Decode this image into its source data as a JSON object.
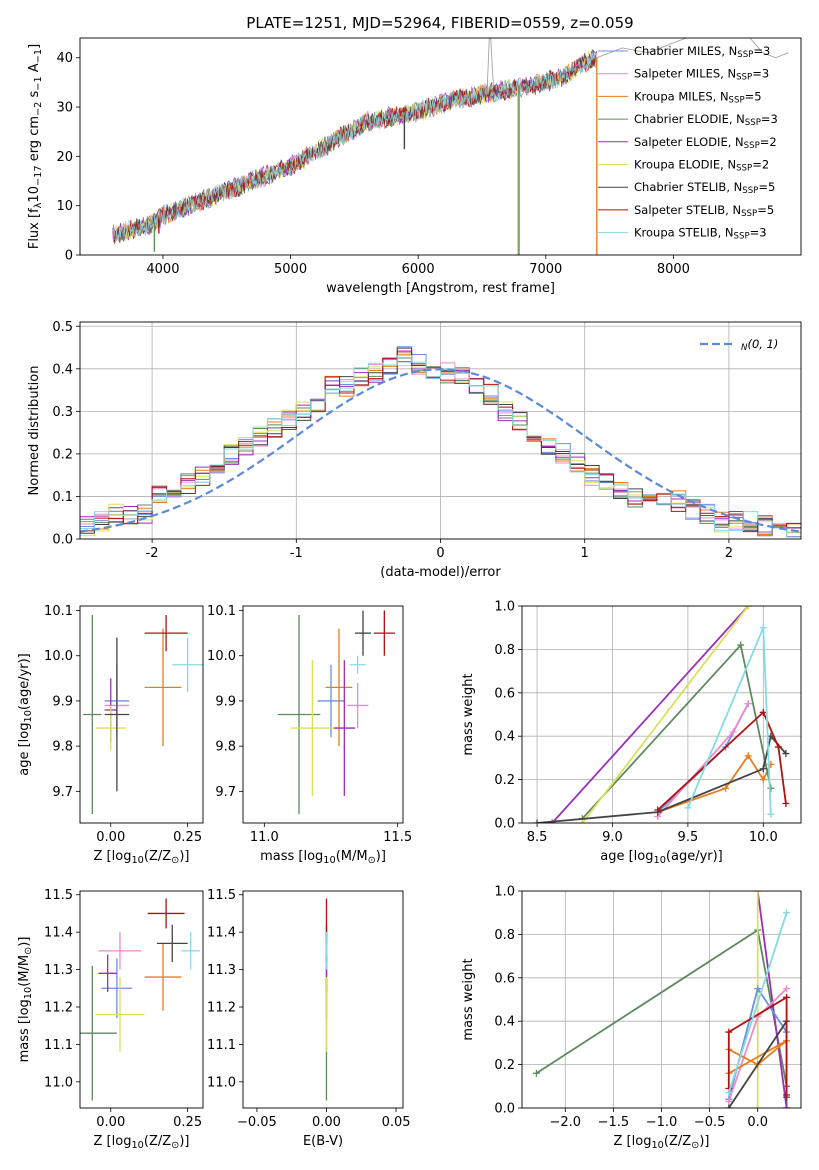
{
  "title": "PLATE=1251, MJD=52964, FIBERID=0559, z=0.059",
  "colors": [
    "#6d8fe0",
    "#e98ccc",
    "#e87d1e",
    "#5d8a5e",
    "#9a2fb8",
    "#d9e05a",
    "#444444",
    "#b01212",
    "#85dbe3"
  ],
  "legend": [
    "Chabrier MILES, N$SSP$=3",
    "Salpeter MILES, N$SSP$=3",
    "Kroupa MILES, N$SSP$=5",
    "Chabrier ELODIE, N$SSP$=3",
    "Salpeter ELODIE, N$SSP$=2",
    "Kroupa ELODIE, N$SSP$=2",
    "Chabrier STELIB, N$SSP$=5",
    "Salpeter STELIB, N$SSP$=5",
    "Kroupa STELIB, N$SSP$=3"
  ],
  "chart_data": [
    {
      "id": "spectrum",
      "type": "line",
      "xlabel": "wavelength [Angstrom, rest frame]",
      "ylabel": "Flux [f$λ$10$−17$ erg cm$−2$ s$−1$ A$−1$]",
      "xlim": [
        3350,
        9000
      ],
      "ylim": [
        0,
        44
      ],
      "xticks": [
        4000,
        5000,
        6000,
        7000,
        8000
      ],
      "yticks": [
        0,
        10,
        20,
        30,
        40
      ],
      "continuum": {
        "x": [
          3600,
          3900,
          4000,
          4200,
          4500,
          4800,
          5000,
          5200,
          5400,
          5600,
          5800,
          6000,
          6200,
          6400,
          6600,
          6800,
          7000,
          7200,
          7300,
          7400
        ],
        "y": [
          4,
          6,
          8,
          10,
          13,
          16,
          18,
          21,
          24,
          27,
          28,
          29,
          31,
          32,
          33,
          34,
          35,
          37,
          39,
          40
        ]
      },
      "features": [
        {
          "x": 5892,
          "depth": -7,
          "series": 6
        },
        {
          "x": 3933,
          "depth": -6,
          "series": 3
        },
        {
          "x": 3968,
          "depth": -3,
          "series": 7
        },
        {
          "x": 6780,
          "depth": -34,
          "series": 5
        },
        {
          "x": 6790,
          "depth": -34,
          "series": 3
        },
        {
          "x": 7400,
          "depth": -40,
          "series": 2
        }
      ],
      "red_tail": {
        "x": [
          7400,
          7600,
          7800,
          8000,
          8100,
          8200,
          8400,
          8600,
          8700,
          8800,
          8900
        ],
        "y": [
          40,
          42,
          41,
          43,
          44,
          44,
          45,
          44,
          41,
          40,
          41
        ]
      }
    },
    {
      "id": "residuals",
      "type": "line",
      "xlabel": "(data-model)/error",
      "ylabel": "Normed distribution",
      "xlim": [
        -2.5,
        2.5
      ],
      "ylim": [
        0,
        0.51
      ],
      "xticks": [
        -2,
        -1,
        0,
        1,
        2
      ],
      "yticks": [
        0,
        0.1,
        0.2,
        0.3,
        0.4,
        0.5
      ],
      "gaussian_label": "$N$(0, 1)",
      "bin_width": 0.1,
      "step": {
        "x": [
          -2.5,
          -2.4,
          -2.3,
          -2.2,
          -2.1,
          -2.0,
          -1.9,
          -1.8,
          -1.7,
          -1.6,
          -1.5,
          -1.4,
          -1.3,
          -1.2,
          -1.1,
          -1.0,
          -0.9,
          -0.8,
          -0.7,
          -0.6,
          -0.5,
          -0.4,
          -0.3,
          -0.2,
          -0.1,
          0.0,
          0.1,
          0.2,
          0.3,
          0.4,
          0.5,
          0.6,
          0.7,
          0.8,
          0.9,
          1.0,
          1.1,
          1.2,
          1.3,
          1.4,
          1.5,
          1.6,
          1.7,
          1.8,
          1.9,
          2.0,
          2.1,
          2.2,
          2.3,
          2.4
        ],
        "y": [
          0.03,
          0.04,
          0.06,
          0.06,
          0.06,
          0.1,
          0.12,
          0.13,
          0.15,
          0.16,
          0.2,
          0.22,
          0.24,
          0.26,
          0.28,
          0.3,
          0.32,
          0.36,
          0.36,
          0.38,
          0.39,
          0.41,
          0.43,
          0.41,
          0.4,
          0.39,
          0.38,
          0.36,
          0.34,
          0.3,
          0.28,
          0.24,
          0.22,
          0.2,
          0.18,
          0.15,
          0.13,
          0.11,
          0.1,
          0.09,
          0.09,
          0.09,
          0.07,
          0.06,
          0.04,
          0.04,
          0.04,
          0.03,
          0.03,
          0.02
        ]
      }
    },
    {
      "id": "age-vs-Z",
      "type": "scatter",
      "xlabel": "Z [log$10$(Z/Z$⊙$)]",
      "ylabel": "age  [log$10$(age/yr)]",
      "xlim": [
        -0.1,
        0.3
      ],
      "ylim": [
        9.63,
        10.11
      ],
      "xticks": [
        0.0,
        0.25
      ],
      "xticklabels": [
        "0.00",
        "0.25"
      ],
      "yticks": [
        9.7,
        9.8,
        9.9,
        10.0,
        10.1
      ],
      "points": [
        {
          "x": 0.02,
          "y": 9.9,
          "xe": 0.04,
          "ye": 0.08,
          "c": 0
        },
        {
          "x": 0.02,
          "y": 9.89,
          "xe": 0.04,
          "ye": 0.05,
          "c": 1
        },
        {
          "x": 0.17,
          "y": 9.93,
          "xe": 0.06,
          "ye": 0.13,
          "c": 2
        },
        {
          "x": -0.06,
          "y": 9.87,
          "xe": 0.03,
          "ye": 0.22,
          "c": 3
        },
        {
          "x": 0.0,
          "y": 9.88,
          "xe": 0.02,
          "ye": 0.07,
          "c": 4
        },
        {
          "x": 0.0,
          "y": 9.84,
          "xe": 0.05,
          "ye": 0.05,
          "c": 5
        },
        {
          "x": 0.02,
          "y": 9.87,
          "xe": 0.04,
          "ye": 0.17,
          "c": 6
        },
        {
          "x": 0.18,
          "y": 10.05,
          "xe": 0.07,
          "ye": 0.04,
          "c": 7
        },
        {
          "x": 0.25,
          "y": 9.98,
          "xe": 0.05,
          "ye": 0.06,
          "c": 8
        }
      ]
    },
    {
      "id": "age-vs-mass",
      "type": "scatter",
      "xlabel": "mass [log$10$(M/M$⊙$)]",
      "ylabel": "",
      "xlim": [
        10.92,
        11.52
      ],
      "ylim": [
        9.63,
        10.11
      ],
      "xticks": [
        11.0,
        11.5
      ],
      "xticklabels": [
        "11.0",
        "11.5"
      ],
      "yticks": [
        9.7,
        9.8,
        9.9,
        10.0,
        10.1
      ],
      "points": [
        {
          "x": 11.25,
          "y": 9.9,
          "xe": 0.05,
          "ye": 0.08,
          "c": 0
        },
        {
          "x": 11.35,
          "y": 9.89,
          "xe": 0.04,
          "ye": 0.05,
          "c": 1
        },
        {
          "x": 11.28,
          "y": 9.93,
          "xe": 0.05,
          "ye": 0.13,
          "c": 2
        },
        {
          "x": 11.13,
          "y": 9.87,
          "xe": 0.08,
          "ye": 0.22,
          "c": 3
        },
        {
          "x": 11.3,
          "y": 9.84,
          "xe": 0.04,
          "ye": 0.15,
          "c": 4
        },
        {
          "x": 11.18,
          "y": 9.84,
          "xe": 0.08,
          "ye": 0.15,
          "c": 5
        },
        {
          "x": 11.37,
          "y": 10.05,
          "xe": 0.03,
          "ye": 0.05,
          "c": 6
        },
        {
          "x": 11.45,
          "y": 10.05,
          "xe": 0.04,
          "ye": 0.05,
          "c": 7
        },
        {
          "x": 11.35,
          "y": 9.98,
          "xe": 0.03,
          "ye": 0.02,
          "c": 8
        }
      ]
    },
    {
      "id": "weight-vs-age",
      "type": "line",
      "xlabel": "age  [log$10$(age/yr)]",
      "ylabel": "mass weight",
      "xlim": [
        8.4,
        10.25
      ],
      "ylim": [
        0,
        1
      ],
      "xticks": [
        8.5,
        9.0,
        9.5,
        10.0
      ],
      "xticklabels": [
        "8.5",
        "9.0",
        "9.5",
        "10.0"
      ],
      "yticks": [
        0,
        0.2,
        0.4,
        0.6,
        0.8,
        1.0
      ],
      "series": [
        {
          "c": 0,
          "x": [
            9.3,
            9.75,
            9.9
          ],
          "y": [
            0.05,
            0.35,
            0.55
          ]
        },
        {
          "c": 1,
          "x": [
            9.3,
            9.8,
            9.9
          ],
          "y": [
            0.03,
            0.42,
            0.55
          ]
        },
        {
          "c": 2,
          "x": [
            9.3,
            9.75,
            9.9,
            10.0,
            10.05
          ],
          "y": [
            0.05,
            0.16,
            0.31,
            0.2,
            0.27
          ]
        },
        {
          "c": 3,
          "x": [
            8.8,
            9.85,
            10.05
          ],
          "y": [
            0.02,
            0.82,
            0.16
          ]
        },
        {
          "c": 4,
          "x": [
            8.6,
            9.9
          ],
          "y": [
            0.0,
            1.0
          ]
        },
        {
          "c": 5,
          "x": [
            8.8,
            9.9
          ],
          "y": [
            0.0,
            1.0
          ]
        },
        {
          "c": 6,
          "x": [
            8.5,
            9.3,
            10.0,
            10.05,
            10.15
          ],
          "y": [
            0.0,
            0.05,
            0.25,
            0.4,
            0.32
          ]
        },
        {
          "c": 7,
          "x": [
            9.3,
            10.0,
            10.1,
            10.15
          ],
          "y": [
            0.06,
            0.51,
            0.35,
            0.09
          ]
        },
        {
          "c": 8,
          "x": [
            9.5,
            10.0,
            10.05
          ],
          "y": [
            0.07,
            0.9,
            0.04
          ]
        }
      ]
    },
    {
      "id": "mass-vs-Z",
      "type": "scatter",
      "xlabel": "Z [log$10$(Z/Z$⊙$)]",
      "ylabel": "mass [log$10$(M/M$⊙$)]",
      "xlim": [
        -0.1,
        0.3
      ],
      "ylim": [
        10.93,
        11.51
      ],
      "xticks": [
        0.0,
        0.25
      ],
      "xticklabels": [
        "0.00",
        "0.25"
      ],
      "yticks": [
        11.0,
        11.1,
        11.2,
        11.3,
        11.4,
        11.5
      ],
      "points": [
        {
          "x": 0.02,
          "y": 11.25,
          "xe": 0.05,
          "ye": 0.08,
          "c": 0
        },
        {
          "x": 0.03,
          "y": 11.35,
          "xe": 0.07,
          "ye": 0.05,
          "c": 1
        },
        {
          "x": 0.17,
          "y": 11.28,
          "xe": 0.06,
          "ye": 0.09,
          "c": 2
        },
        {
          "x": -0.06,
          "y": 11.13,
          "xe": 0.08,
          "ye": 0.18,
          "c": 3
        },
        {
          "x": -0.01,
          "y": 11.29,
          "xe": 0.03,
          "ye": 0.05,
          "c": 4
        },
        {
          "x": 0.03,
          "y": 11.18,
          "xe": 0.08,
          "ye": 0.1,
          "c": 5
        },
        {
          "x": 0.2,
          "y": 11.37,
          "xe": 0.05,
          "ye": 0.05,
          "c": 6
        },
        {
          "x": 0.18,
          "y": 11.45,
          "xe": 0.06,
          "ye": 0.04,
          "c": 7
        },
        {
          "x": 0.26,
          "y": 11.35,
          "xe": 0.03,
          "ye": 0.05,
          "c": 8
        }
      ]
    },
    {
      "id": "mass-vs-EBV",
      "type": "scatter",
      "xlabel": "E(B-V)",
      "ylabel": "",
      "xlim": [
        -0.06,
        0.055
      ],
      "ylim": [
        10.93,
        11.51
      ],
      "xticks": [
        -0.05,
        0.0,
        0.05
      ],
      "xticklabels": [
        "−0.05",
        "0.00",
        "0.05"
      ],
      "yticks": [
        11.0,
        11.1,
        11.2,
        11.3,
        11.4,
        11.5
      ],
      "points": [
        {
          "x": 0,
          "y": 11.13,
          "xe": 0,
          "ye": 0.18,
          "c": 3
        },
        {
          "x": 0,
          "y": 11.25,
          "xe": 0,
          "ye": 0.08,
          "c": 0
        },
        {
          "x": 0,
          "y": 11.35,
          "xe": 0,
          "ye": 0.05,
          "c": 1
        },
        {
          "x": 0,
          "y": 11.29,
          "xe": 0,
          "ye": 0.05,
          "c": 4
        },
        {
          "x": 0,
          "y": 11.18,
          "xe": 0,
          "ye": 0.1,
          "c": 5
        },
        {
          "x": 0,
          "y": 11.37,
          "xe": 0,
          "ye": 0.05,
          "c": 6
        },
        {
          "x": 0,
          "y": 11.43,
          "xe": 0,
          "ye": 0.06,
          "c": 7
        },
        {
          "x": 0,
          "y": 11.35,
          "xe": 0,
          "ye": 0.05,
          "c": 8
        }
      ]
    },
    {
      "id": "weight-vs-Z",
      "type": "line",
      "xlabel": "Z [log$10$(Z/Z$⊙$)]",
      "ylabel": "mass weight",
      "xlim": [
        -2.45,
        0.45
      ],
      "ylim": [
        0,
        1
      ],
      "xticks": [
        -2.0,
        -1.5,
        -1.0,
        -0.5,
        0.0
      ],
      "xticklabels": [
        "−2.0",
        "−1.5",
        "−1.0",
        "−0.5",
        "0.0"
      ],
      "yticks": [
        0,
        0.2,
        0.4,
        0.6,
        0.8,
        1.0
      ],
      "series": [
        {
          "c": 3,
          "x": [
            -2.3,
            0.0,
            0.3,
            0.3
          ],
          "y": [
            0.16,
            0.82,
            0.1,
            0.0
          ]
        },
        {
          "c": 4,
          "x": [
            0.0,
            0.3
          ],
          "y": [
            1.0,
            0.0
          ]
        },
        {
          "c": 5,
          "x": [
            0.0,
            0.0
          ],
          "y": [
            1.0,
            0.0
          ]
        },
        {
          "c": 0,
          "x": [
            -0.3,
            0.0,
            0.3
          ],
          "y": [
            0.04,
            0.55,
            0.35
          ]
        },
        {
          "c": 1,
          "x": [
            -0.3,
            0.0,
            0.3
          ],
          "y": [
            0.03,
            0.42,
            0.55
          ]
        },
        {
          "c": 2,
          "x": [
            -0.3,
            0.0,
            0.3,
            -0.3
          ],
          "y": [
            0.27,
            0.2,
            0.31,
            0.16
          ]
        },
        {
          "c": 6,
          "x": [
            -0.3,
            0.3,
            0.3
          ],
          "y": [
            0.0,
            0.4,
            0.05
          ]
        },
        {
          "c": 7,
          "x": [
            -0.3,
            -0.3,
            0.3,
            0.3
          ],
          "y": [
            0.09,
            0.35,
            0.51,
            0.06
          ]
        },
        {
          "c": 8,
          "x": [
            -0.3,
            0.3
          ],
          "y": [
            0.07,
            0.9
          ]
        }
      ]
    }
  ]
}
